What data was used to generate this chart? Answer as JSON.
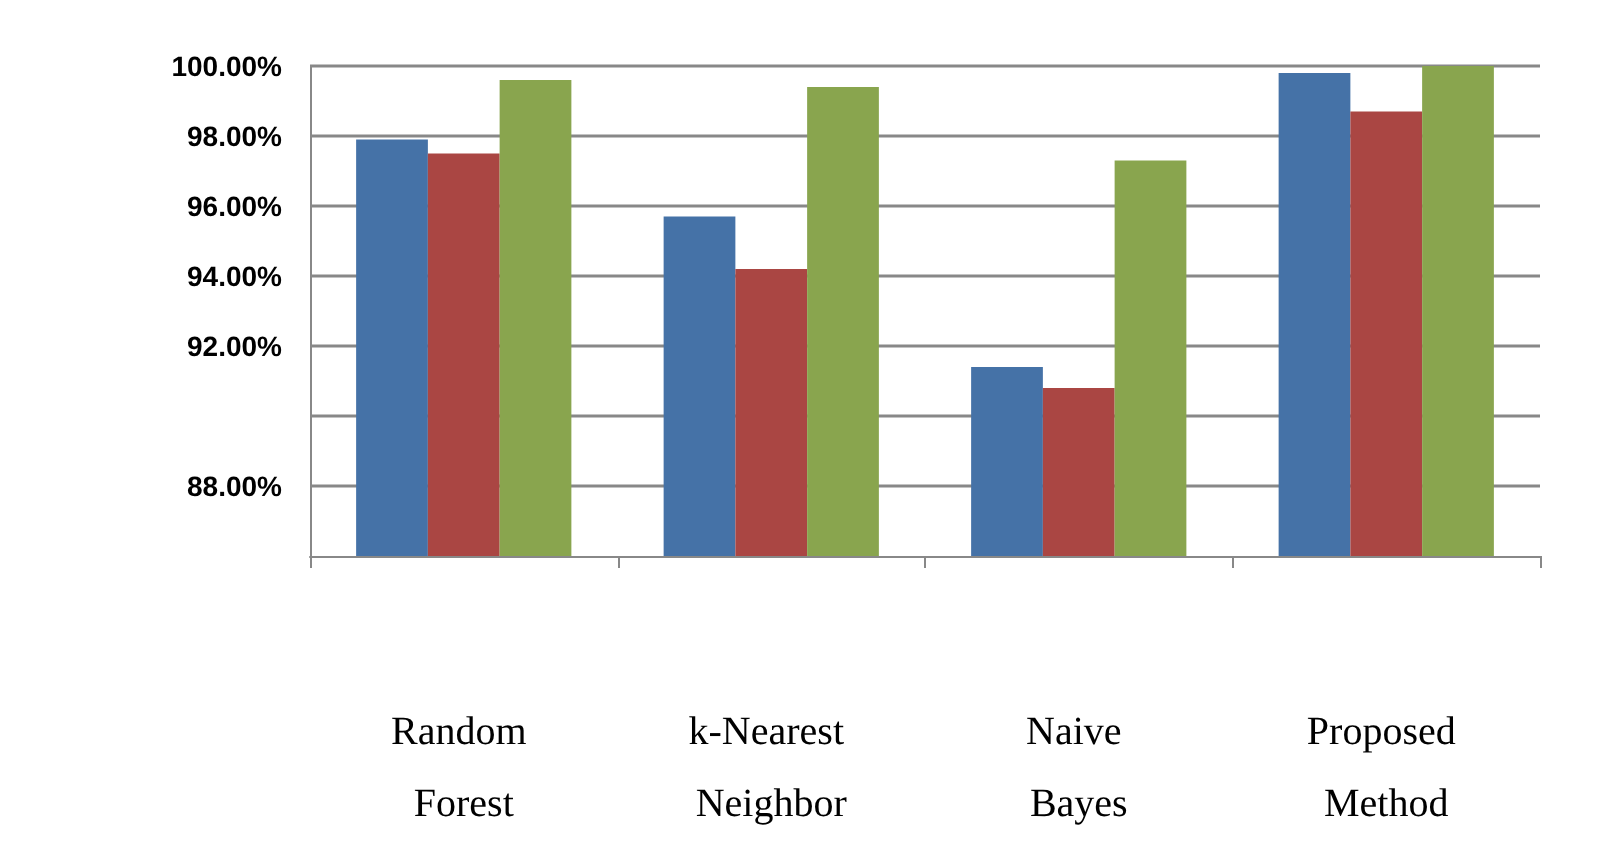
{
  "chart_data": {
    "type": "bar",
    "categories": [
      "Random Forest",
      "k-Nearest Neighbor",
      "Naive Bayes",
      "Proposed Method"
    ],
    "series": [
      {
        "color": "#4572a7",
        "values": [
          97.9,
          95.7,
          91.4,
          99.8
        ]
      },
      {
        "color": "#aa4643",
        "values": [
          97.5,
          94.2,
          90.8,
          98.7
        ]
      },
      {
        "color": "#89a54e",
        "values": [
          99.6,
          99.4,
          97.3,
          100
        ]
      }
    ],
    "ylim": [
      86,
      100
    ],
    "yticks": [
      {
        "value": 100,
        "label": "100.00%"
      },
      {
        "value": 98,
        "label": "98.00%"
      },
      {
        "value": 96,
        "label": "96.00%"
      },
      {
        "value": 94,
        "label": "94.00%"
      },
      {
        "value": 92,
        "label": "92.00%"
      },
      {
        "value": 90,
        "label": null
      },
      {
        "value": 88,
        "label": "88.00%"
      }
    ],
    "grid": "y"
  }
}
